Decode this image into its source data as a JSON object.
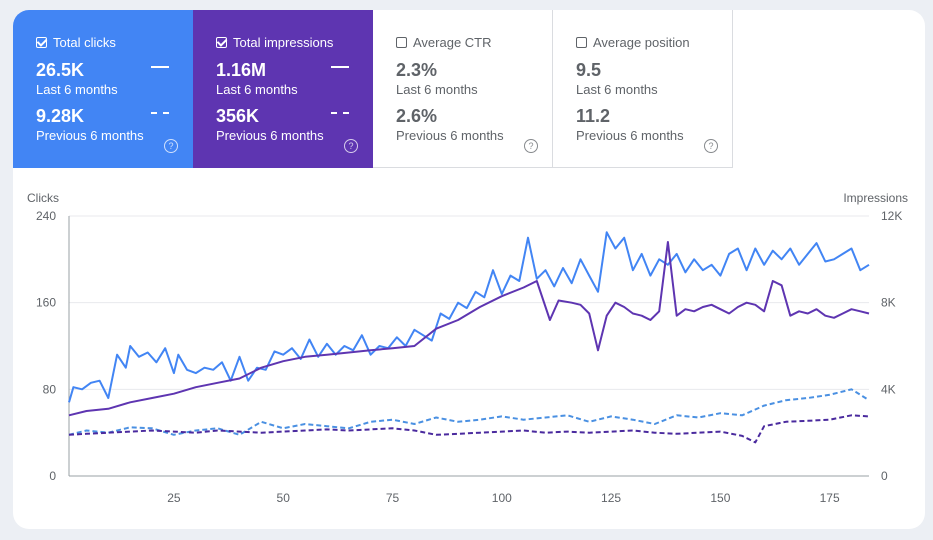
{
  "colors": {
    "clicks": "#4285f4",
    "impressions": "#5e35b1",
    "clicks_prev": "#4a90e2",
    "impressions_prev": "#4a2a9e"
  },
  "tiles": [
    {
      "label": "Total clicks",
      "checked": true,
      "value": "26.5K",
      "period": "Last 6 months",
      "prev_value": "9.28K",
      "prev_period": "Previous 6 months",
      "help_icon": "?"
    },
    {
      "label": "Total impressions",
      "checked": true,
      "value": "1.16M",
      "period": "Last 6 months",
      "prev_value": "356K",
      "prev_period": "Previous 6 months",
      "help_icon": "?"
    },
    {
      "label": "Average CTR",
      "checked": false,
      "value": "2.3%",
      "period": "Last 6 months",
      "prev_value": "2.6%",
      "prev_period": "Previous 6 months",
      "help_icon": "?"
    },
    {
      "label": "Average position",
      "checked": false,
      "value": "9.5",
      "period": "Last 6 months",
      "prev_value": "11.2",
      "prev_period": "Previous 6 months",
      "help_icon": "?"
    }
  ],
  "chart_data": {
    "type": "line",
    "ylabel": "Clicks",
    "y2label": "Impressions",
    "ylim": [
      0,
      240
    ],
    "y2lim": [
      0,
      12000
    ],
    "yticks": [
      "240",
      "160",
      "80",
      "0"
    ],
    "y2ticks": [
      "12K",
      "8K",
      "4K",
      "0"
    ],
    "xlim": [
      1,
      184
    ],
    "xticks": [
      "25",
      "50",
      "75",
      "100",
      "125",
      "150",
      "175"
    ],
    "series": [
      {
        "name": "Clicks (Last 6 months)",
        "axis": "left",
        "style": "solid",
        "points": [
          [
            1,
            68
          ],
          [
            2,
            82
          ],
          [
            4,
            80
          ],
          [
            6,
            86
          ],
          [
            8,
            88
          ],
          [
            10,
            72
          ],
          [
            12,
            112
          ],
          [
            14,
            100
          ],
          [
            15,
            120
          ],
          [
            17,
            110
          ],
          [
            19,
            114
          ],
          [
            21,
            105
          ],
          [
            23,
            118
          ],
          [
            25,
            95
          ],
          [
            26,
            112
          ],
          [
            28,
            98
          ],
          [
            30,
            95
          ],
          [
            32,
            100
          ],
          [
            34,
            98
          ],
          [
            36,
            105
          ],
          [
            38,
            88
          ],
          [
            40,
            110
          ],
          [
            42,
            88
          ],
          [
            44,
            100
          ],
          [
            46,
            98
          ],
          [
            48,
            115
          ],
          [
            50,
            112
          ],
          [
            52,
            118
          ],
          [
            54,
            108
          ],
          [
            56,
            126
          ],
          [
            58,
            110
          ],
          [
            60,
            122
          ],
          [
            62,
            112
          ],
          [
            64,
            120
          ],
          [
            66,
            116
          ],
          [
            68,
            130
          ],
          [
            70,
            112
          ],
          [
            72,
            120
          ],
          [
            74,
            118
          ],
          [
            76,
            128
          ],
          [
            78,
            120
          ],
          [
            80,
            135
          ],
          [
            82,
            130
          ],
          [
            84,
            125
          ],
          [
            86,
            150
          ],
          [
            88,
            145
          ],
          [
            90,
            160
          ],
          [
            92,
            155
          ],
          [
            94,
            170
          ],
          [
            96,
            165
          ],
          [
            98,
            190
          ],
          [
            100,
            168
          ],
          [
            102,
            185
          ],
          [
            104,
            180
          ],
          [
            106,
            220
          ],
          [
            108,
            182
          ],
          [
            110,
            190
          ],
          [
            112,
            175
          ],
          [
            114,
            192
          ],
          [
            116,
            178
          ],
          [
            118,
            200
          ],
          [
            120,
            185
          ],
          [
            122,
            170
          ],
          [
            124,
            225
          ],
          [
            126,
            210
          ],
          [
            128,
            220
          ],
          [
            130,
            190
          ],
          [
            132,
            205
          ],
          [
            134,
            185
          ],
          [
            136,
            200
          ],
          [
            138,
            195
          ],
          [
            140,
            205
          ],
          [
            142,
            188
          ],
          [
            144,
            200
          ],
          [
            146,
            190
          ],
          [
            148,
            195
          ],
          [
            150,
            185
          ],
          [
            152,
            205
          ],
          [
            154,
            210
          ],
          [
            156,
            190
          ],
          [
            158,
            210
          ],
          [
            160,
            195
          ],
          [
            162,
            208
          ],
          [
            164,
            200
          ],
          [
            166,
            210
          ],
          [
            168,
            195
          ],
          [
            170,
            205
          ],
          [
            172,
            215
          ],
          [
            174,
            198
          ],
          [
            176,
            200
          ],
          [
            178,
            205
          ],
          [
            180,
            210
          ],
          [
            182,
            190
          ],
          [
            184,
            195
          ]
        ]
      },
      {
        "name": "Impressions (Last 6 months)",
        "axis": "right",
        "style": "solid",
        "points": [
          [
            1,
            2800
          ],
          [
            5,
            3000
          ],
          [
            10,
            3100
          ],
          [
            15,
            3400
          ],
          [
            20,
            3600
          ],
          [
            25,
            3800
          ],
          [
            30,
            4100
          ],
          [
            35,
            4300
          ],
          [
            40,
            4500
          ],
          [
            45,
            5000
          ],
          [
            50,
            5300
          ],
          [
            55,
            5500
          ],
          [
            60,
            5600
          ],
          [
            65,
            5700
          ],
          [
            70,
            5800
          ],
          [
            75,
            5900
          ],
          [
            80,
            6000
          ],
          [
            85,
            6800
          ],
          [
            90,
            7200
          ],
          [
            95,
            7800
          ],
          [
            100,
            8300
          ],
          [
            105,
            8700
          ],
          [
            108,
            9000
          ],
          [
            111,
            7200
          ],
          [
            113,
            8100
          ],
          [
            116,
            8000
          ],
          [
            118,
            7900
          ],
          [
            120,
            7500
          ],
          [
            122,
            5800
          ],
          [
            124,
            7400
          ],
          [
            126,
            8000
          ],
          [
            128,
            7800
          ],
          [
            130,
            7500
          ],
          [
            132,
            7400
          ],
          [
            134,
            7200
          ],
          [
            136,
            7600
          ],
          [
            138,
            10800
          ],
          [
            140,
            7400
          ],
          [
            142,
            7700
          ],
          [
            144,
            7600
          ],
          [
            146,
            7800
          ],
          [
            148,
            7900
          ],
          [
            150,
            7700
          ],
          [
            152,
            7500
          ],
          [
            154,
            7800
          ],
          [
            156,
            8000
          ],
          [
            158,
            7900
          ],
          [
            160,
            7600
          ],
          [
            162,
            9000
          ],
          [
            164,
            8800
          ],
          [
            166,
            7400
          ],
          [
            168,
            7600
          ],
          [
            170,
            7500
          ],
          [
            172,
            7700
          ],
          [
            174,
            7400
          ],
          [
            176,
            7300
          ],
          [
            178,
            7500
          ],
          [
            180,
            7700
          ],
          [
            182,
            7600
          ],
          [
            184,
            7500
          ]
        ]
      },
      {
        "name": "Clicks (Previous 6 months)",
        "axis": "left",
        "style": "dashed",
        "points": [
          [
            1,
            38
          ],
          [
            5,
            42
          ],
          [
            10,
            40
          ],
          [
            15,
            45
          ],
          [
            20,
            44
          ],
          [
            25,
            38
          ],
          [
            30,
            42
          ],
          [
            35,
            44
          ],
          [
            40,
            38
          ],
          [
            45,
            50
          ],
          [
            50,
            44
          ],
          [
            55,
            48
          ],
          [
            60,
            46
          ],
          [
            65,
            44
          ],
          [
            70,
            50
          ],
          [
            75,
            52
          ],
          [
            80,
            48
          ],
          [
            85,
            54
          ],
          [
            90,
            50
          ],
          [
            95,
            52
          ],
          [
            100,
            55
          ],
          [
            105,
            52
          ],
          [
            110,
            54
          ],
          [
            115,
            56
          ],
          [
            120,
            50
          ],
          [
            125,
            55
          ],
          [
            130,
            52
          ],
          [
            135,
            48
          ],
          [
            140,
            56
          ],
          [
            145,
            54
          ],
          [
            150,
            58
          ],
          [
            155,
            56
          ],
          [
            160,
            65
          ],
          [
            165,
            70
          ],
          [
            170,
            72
          ],
          [
            175,
            75
          ],
          [
            180,
            80
          ],
          [
            184,
            70
          ]
        ]
      },
      {
        "name": "Impressions (Previous 6 months)",
        "axis": "right",
        "style": "dashed",
        "points": [
          [
            1,
            1900
          ],
          [
            5,
            1950
          ],
          [
            10,
            2000
          ],
          [
            15,
            2050
          ],
          [
            20,
            2100
          ],
          [
            25,
            2050
          ],
          [
            30,
            2000
          ],
          [
            35,
            2100
          ],
          [
            40,
            2050
          ],
          [
            45,
            2000
          ],
          [
            50,
            2050
          ],
          [
            55,
            2100
          ],
          [
            60,
            2150
          ],
          [
            65,
            2100
          ],
          [
            70,
            2150
          ],
          [
            75,
            2200
          ],
          [
            80,
            2100
          ],
          [
            85,
            1900
          ],
          [
            90,
            1950
          ],
          [
            95,
            2000
          ],
          [
            100,
            2050
          ],
          [
            105,
            2100
          ],
          [
            110,
            2000
          ],
          [
            115,
            2050
          ],
          [
            120,
            2000
          ],
          [
            125,
            2050
          ],
          [
            130,
            2100
          ],
          [
            135,
            2000
          ],
          [
            140,
            1950
          ],
          [
            145,
            2000
          ],
          [
            150,
            2050
          ],
          [
            155,
            1850
          ],
          [
            158,
            1550
          ],
          [
            160,
            2300
          ],
          [
            165,
            2500
          ],
          [
            170,
            2550
          ],
          [
            175,
            2600
          ],
          [
            180,
            2800
          ],
          [
            184,
            2750
          ]
        ]
      }
    ]
  }
}
